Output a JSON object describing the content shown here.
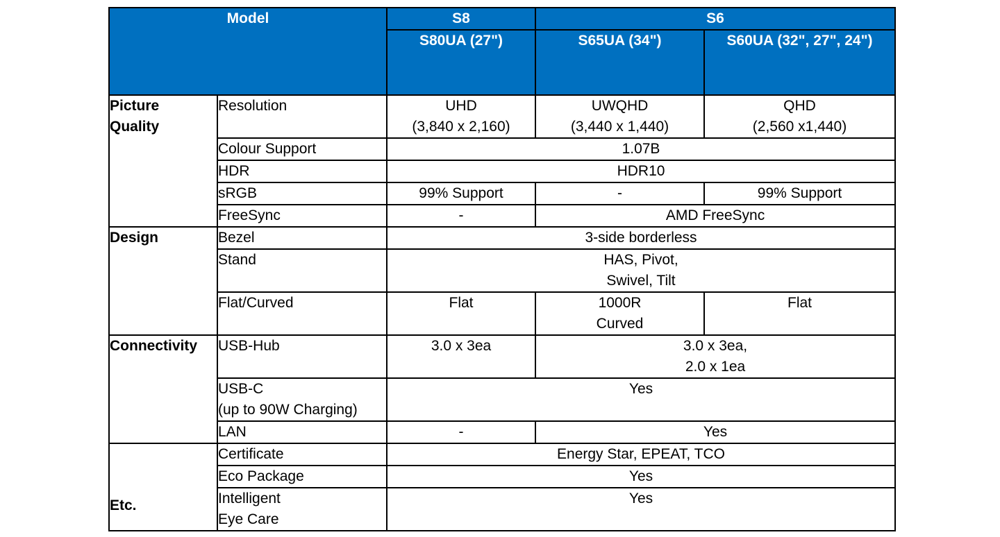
{
  "header": {
    "model_label": "Model",
    "series": [
      "S8",
      "S6"
    ],
    "models": [
      "S80UA (27\")",
      "S65UA (34\")",
      "S60UA (32\", 27\", 24\")"
    ]
  },
  "picture_quality": {
    "category": [
      "Picture",
      "Quality"
    ],
    "resolution": {
      "label": "Resolution",
      "s80ua": [
        "UHD",
        "(3,840 x 2,160)"
      ],
      "s65ua": [
        "UWQHD",
        "(3,440 x 1,440)"
      ],
      "s60ua": [
        "QHD",
        "(2,560 x1,440)"
      ]
    },
    "colour_support": {
      "label": "Colour Support",
      "all": "1.07B"
    },
    "hdr": {
      "label": "HDR",
      "all": "HDR10"
    },
    "srgb": {
      "label": "sRGB",
      "s80ua": "99% Support",
      "s65ua": "-",
      "s60ua": "99% Support"
    },
    "freesync": {
      "label": "FreeSync",
      "s80ua": "-",
      "s6": "AMD FreeSync"
    }
  },
  "design": {
    "category": "Design",
    "bezel": {
      "label": "Bezel",
      "all": "3-side borderless"
    },
    "stand": {
      "label": "Stand",
      "all": [
        "HAS, Pivot,",
        "Swivel, Tilt"
      ]
    },
    "flat_curved": {
      "label": "Flat/Curved",
      "s80ua": "Flat",
      "s65ua": [
        "1000R",
        "Curved"
      ],
      "s60ua": "Flat"
    }
  },
  "connectivity": {
    "category": "Connectivity",
    "usb_hub": {
      "label": "USB-Hub",
      "s80ua": "3.0 x 3ea",
      "s6": [
        "3.0 x 3ea,",
        "2.0 x 1ea"
      ]
    },
    "usb_c": {
      "label": [
        "USB-C",
        "(up to 90W Charging)"
      ],
      "all": "Yes"
    },
    "lan": {
      "label": "LAN",
      "s80ua": "-",
      "s6": "Yes"
    }
  },
  "etc": {
    "category": "Etc.",
    "certificate": {
      "label": "Certificate",
      "all": "Energy Star, EPEAT, TCO"
    },
    "eco_package": {
      "label": "Eco Package",
      "all": "Yes"
    },
    "intelligent_eye_care": {
      "label": [
        "Intelligent",
        "Eye Care"
      ],
      "all": "Yes"
    }
  }
}
